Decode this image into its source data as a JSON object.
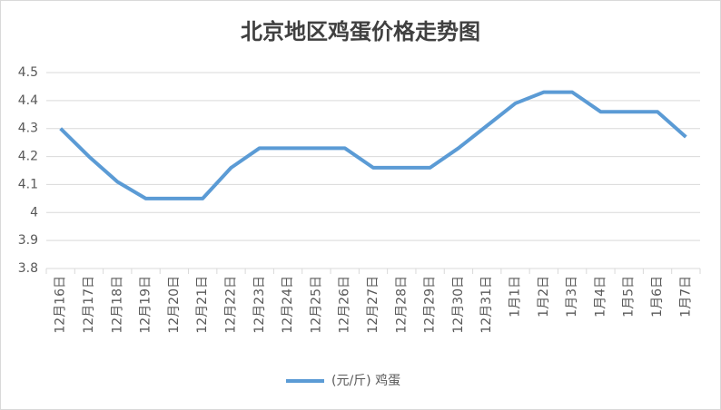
{
  "chart_data": {
    "type": "line",
    "title": "北京地区鸡蛋价格走势图",
    "categories": [
      "12月16日",
      "12月17日",
      "12月18日",
      "12月19日",
      "12月20日",
      "12月21日",
      "12月22日",
      "12月23日",
      "12月24日",
      "12月25日",
      "12月26日",
      "12月27日",
      "12月28日",
      "12月29日",
      "12月30日",
      "12月31日",
      "1月1日",
      "1月2日",
      "1月3日",
      "1月4日",
      "1月5日",
      "1月6日",
      "1月7日"
    ],
    "series": [
      {
        "name": "(元/斤) 鸡蛋",
        "color": "#5b9bd5",
        "values": [
          4.3,
          4.2,
          4.11,
          4.05,
          4.05,
          4.05,
          4.16,
          4.23,
          4.23,
          4.23,
          4.23,
          4.16,
          4.16,
          4.16,
          4.23,
          4.31,
          4.39,
          4.43,
          4.43,
          4.36,
          4.36,
          4.36,
          4.27
        ]
      }
    ],
    "ylim": [
      3.8,
      4.5
    ],
    "yticks": [
      3.8,
      3.9,
      4,
      4.1,
      4.2,
      4.3,
      4.4,
      4.5
    ],
    "grid": true,
    "legend": "bottom"
  }
}
